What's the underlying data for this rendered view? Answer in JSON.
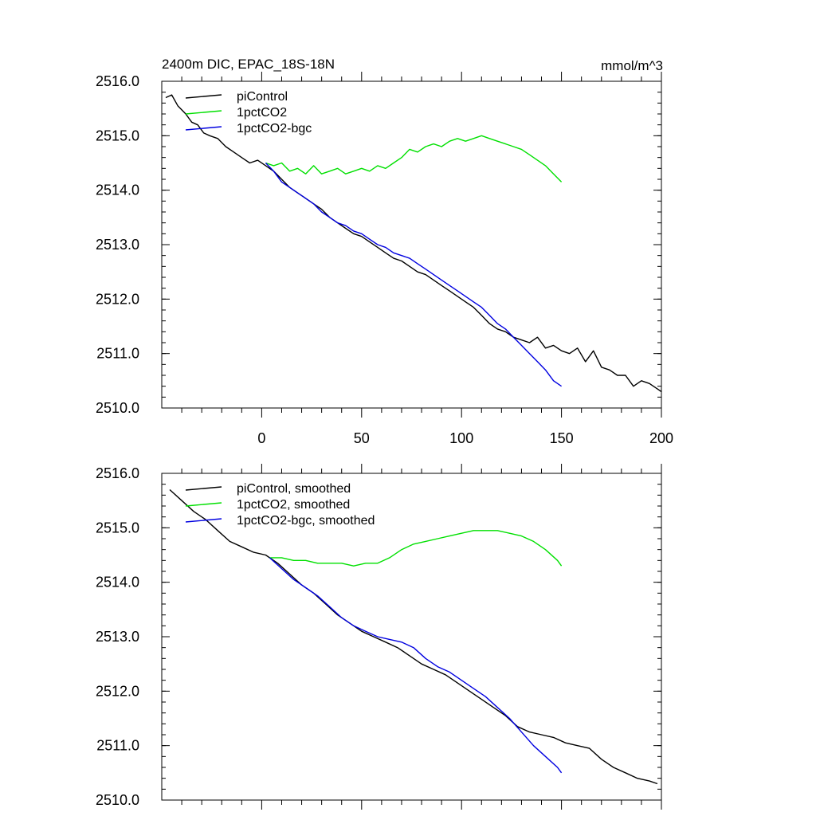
{
  "chart_data": [
    {
      "type": "line",
      "title": "2400m DIC, EPAC_18S-18N",
      "units": "mmol/m^3",
      "xlim": [
        -50,
        200
      ],
      "ylim": [
        2510.0,
        2516.0
      ],
      "xticks": [
        0,
        50,
        100,
        150,
        200
      ],
      "xtick_labels": [
        "0",
        "50",
        "100",
        "150",
        "200"
      ],
      "yticks": [
        2510.0,
        2511.0,
        2512.0,
        2513.0,
        2514.0,
        2515.0,
        2516.0
      ],
      "ytick_labels": [
        "2510.0",
        "2511.0",
        "2512.0",
        "2513.0",
        "2514.0",
        "2515.0",
        "2516.0"
      ],
      "legend_position": "top-left",
      "series": [
        {
          "name": "piControl",
          "color": "#000000",
          "x": [
            -48,
            -45,
            -42,
            -38,
            -35,
            -32,
            -29,
            -26,
            -22,
            -18,
            -14,
            -10,
            -6,
            -2,
            2,
            6,
            10,
            14,
            18,
            22,
            26,
            30,
            34,
            38,
            42,
            46,
            50,
            54,
            58,
            62,
            66,
            70,
            74,
            78,
            82,
            86,
            90,
            94,
            98,
            102,
            106,
            110,
            114,
            118,
            122,
            126,
            130,
            134,
            138,
            142,
            146,
            150,
            154,
            158,
            162,
            166,
            170,
            174,
            178,
            182,
            186,
            190,
            194,
            198,
            200
          ],
          "values": [
            2515.7,
            2515.75,
            2515.55,
            2515.4,
            2515.25,
            2515.2,
            2515.05,
            2515.0,
            2514.95,
            2514.8,
            2514.7,
            2514.6,
            2514.5,
            2514.55,
            2514.45,
            2514.35,
            2514.2,
            2514.05,
            2513.95,
            2513.85,
            2513.75,
            2513.65,
            2513.5,
            2513.4,
            2513.3,
            2513.2,
            2513.15,
            2513.05,
            2512.95,
            2512.85,
            2512.75,
            2512.7,
            2512.6,
            2512.5,
            2512.45,
            2512.35,
            2512.25,
            2512.15,
            2512.05,
            2511.95,
            2511.85,
            2511.7,
            2511.55,
            2511.45,
            2511.4,
            2511.3,
            2511.25,
            2511.2,
            2511.3,
            2511.1,
            2511.15,
            2511.05,
            2511.0,
            2511.1,
            2510.85,
            2511.05,
            2510.75,
            2510.7,
            2510.6,
            2510.6,
            2510.4,
            2510.5,
            2510.45,
            2510.35,
            2510.3
          ]
        },
        {
          "name": "1pctCO2",
          "color": "#00e000",
          "x": [
            2,
            6,
            10,
            14,
            18,
            22,
            26,
            30,
            34,
            38,
            42,
            46,
            50,
            54,
            58,
            62,
            66,
            70,
            74,
            78,
            82,
            86,
            90,
            94,
            98,
            102,
            106,
            110,
            114,
            118,
            122,
            126,
            130,
            134,
            138,
            142,
            146,
            150
          ],
          "values": [
            2514.5,
            2514.45,
            2514.5,
            2514.35,
            2514.4,
            2514.3,
            2514.45,
            2514.3,
            2514.35,
            2514.4,
            2514.3,
            2514.35,
            2514.4,
            2514.35,
            2514.45,
            2514.4,
            2514.5,
            2514.6,
            2514.75,
            2514.7,
            2514.8,
            2514.85,
            2514.8,
            2514.9,
            2514.95,
            2514.9,
            2514.95,
            2515.0,
            2514.95,
            2514.9,
            2514.85,
            2514.8,
            2514.75,
            2514.65,
            2514.55,
            2514.45,
            2514.3,
            2514.15
          ]
        },
        {
          "name": "1pctCO2-bgc",
          "color": "#0000e0",
          "x": [
            2,
            6,
            10,
            14,
            18,
            22,
            26,
            30,
            34,
            38,
            42,
            46,
            50,
            54,
            58,
            62,
            66,
            70,
            74,
            78,
            82,
            86,
            90,
            94,
            98,
            102,
            106,
            110,
            114,
            118,
            122,
            126,
            130,
            134,
            138,
            142,
            146,
            150
          ],
          "values": [
            2514.5,
            2514.35,
            2514.15,
            2514.05,
            2513.95,
            2513.85,
            2513.75,
            2513.6,
            2513.5,
            2513.4,
            2513.35,
            2513.25,
            2513.2,
            2513.1,
            2513.0,
            2512.95,
            2512.85,
            2512.8,
            2512.75,
            2512.65,
            2512.55,
            2512.45,
            2512.35,
            2512.25,
            2512.15,
            2512.05,
            2511.95,
            2511.85,
            2511.7,
            2511.55,
            2511.45,
            2511.3,
            2511.15,
            2511.0,
            2510.85,
            2510.7,
            2510.5,
            2510.4
          ]
        }
      ]
    },
    {
      "type": "line",
      "title": "",
      "xlim": [
        -50,
        200
      ],
      "ylim": [
        2510.0,
        2516.0
      ],
      "xticks": [
        0,
        50,
        100,
        150,
        200
      ],
      "yticks": [
        2510.0,
        2511.0,
        2512.0,
        2513.0,
        2514.0,
        2515.0,
        2516.0
      ],
      "ytick_labels": [
        "2510.0",
        "2511.0",
        "2512.0",
        "2513.0",
        "2514.0",
        "2515.0",
        "2516.0"
      ],
      "legend_position": "top-left",
      "series": [
        {
          "name": "piControl, smoothed",
          "color": "#000000",
          "x": [
            -46,
            -40,
            -34,
            -28,
            -22,
            -16,
            -10,
            -4,
            2,
            8,
            14,
            20,
            26,
            32,
            38,
            44,
            50,
            56,
            62,
            68,
            74,
            80,
            86,
            92,
            98,
            104,
            110,
            116,
            122,
            128,
            134,
            140,
            146,
            152,
            158,
            164,
            170,
            176,
            182,
            188,
            194,
            198
          ],
          "values": [
            2515.7,
            2515.5,
            2515.3,
            2515.15,
            2514.95,
            2514.75,
            2514.65,
            2514.55,
            2514.5,
            2514.35,
            2514.15,
            2513.95,
            2513.8,
            2513.6,
            2513.4,
            2513.25,
            2513.1,
            2513.0,
            2512.9,
            2512.8,
            2512.65,
            2512.5,
            2512.4,
            2512.3,
            2512.15,
            2512.0,
            2511.85,
            2511.7,
            2511.55,
            2511.35,
            2511.25,
            2511.2,
            2511.15,
            2511.05,
            2511.0,
            2510.95,
            2510.75,
            2510.6,
            2510.5,
            2510.4,
            2510.35,
            2510.3
          ]
        },
        {
          "name": "1pctCO2, smoothed",
          "color": "#00e000",
          "x": [
            4,
            10,
            16,
            22,
            28,
            34,
            40,
            46,
            52,
            58,
            64,
            70,
            76,
            82,
            88,
            94,
            100,
            106,
            112,
            118,
            124,
            130,
            136,
            142,
            148,
            150
          ],
          "values": [
            2514.45,
            2514.45,
            2514.4,
            2514.4,
            2514.35,
            2514.35,
            2514.35,
            2514.3,
            2514.35,
            2514.35,
            2514.45,
            2514.6,
            2514.7,
            2514.75,
            2514.8,
            2514.85,
            2514.9,
            2514.95,
            2514.95,
            2514.95,
            2514.9,
            2514.85,
            2514.75,
            2514.6,
            2514.4,
            2514.3
          ]
        },
        {
          "name": "1pctCO2-bgc, smoothed",
          "color": "#0000e0",
          "x": [
            4,
            10,
            16,
            22,
            28,
            34,
            40,
            46,
            52,
            58,
            64,
            70,
            76,
            82,
            88,
            94,
            100,
            106,
            112,
            118,
            124,
            130,
            136,
            142,
            148,
            150
          ],
          "values": [
            2514.45,
            2514.25,
            2514.05,
            2513.9,
            2513.75,
            2513.55,
            2513.35,
            2513.2,
            2513.1,
            2513.0,
            2512.95,
            2512.9,
            2512.8,
            2512.6,
            2512.45,
            2512.35,
            2512.2,
            2512.05,
            2511.9,
            2511.7,
            2511.5,
            2511.25,
            2511.0,
            2510.8,
            2510.6,
            2510.5
          ]
        }
      ]
    }
  ]
}
